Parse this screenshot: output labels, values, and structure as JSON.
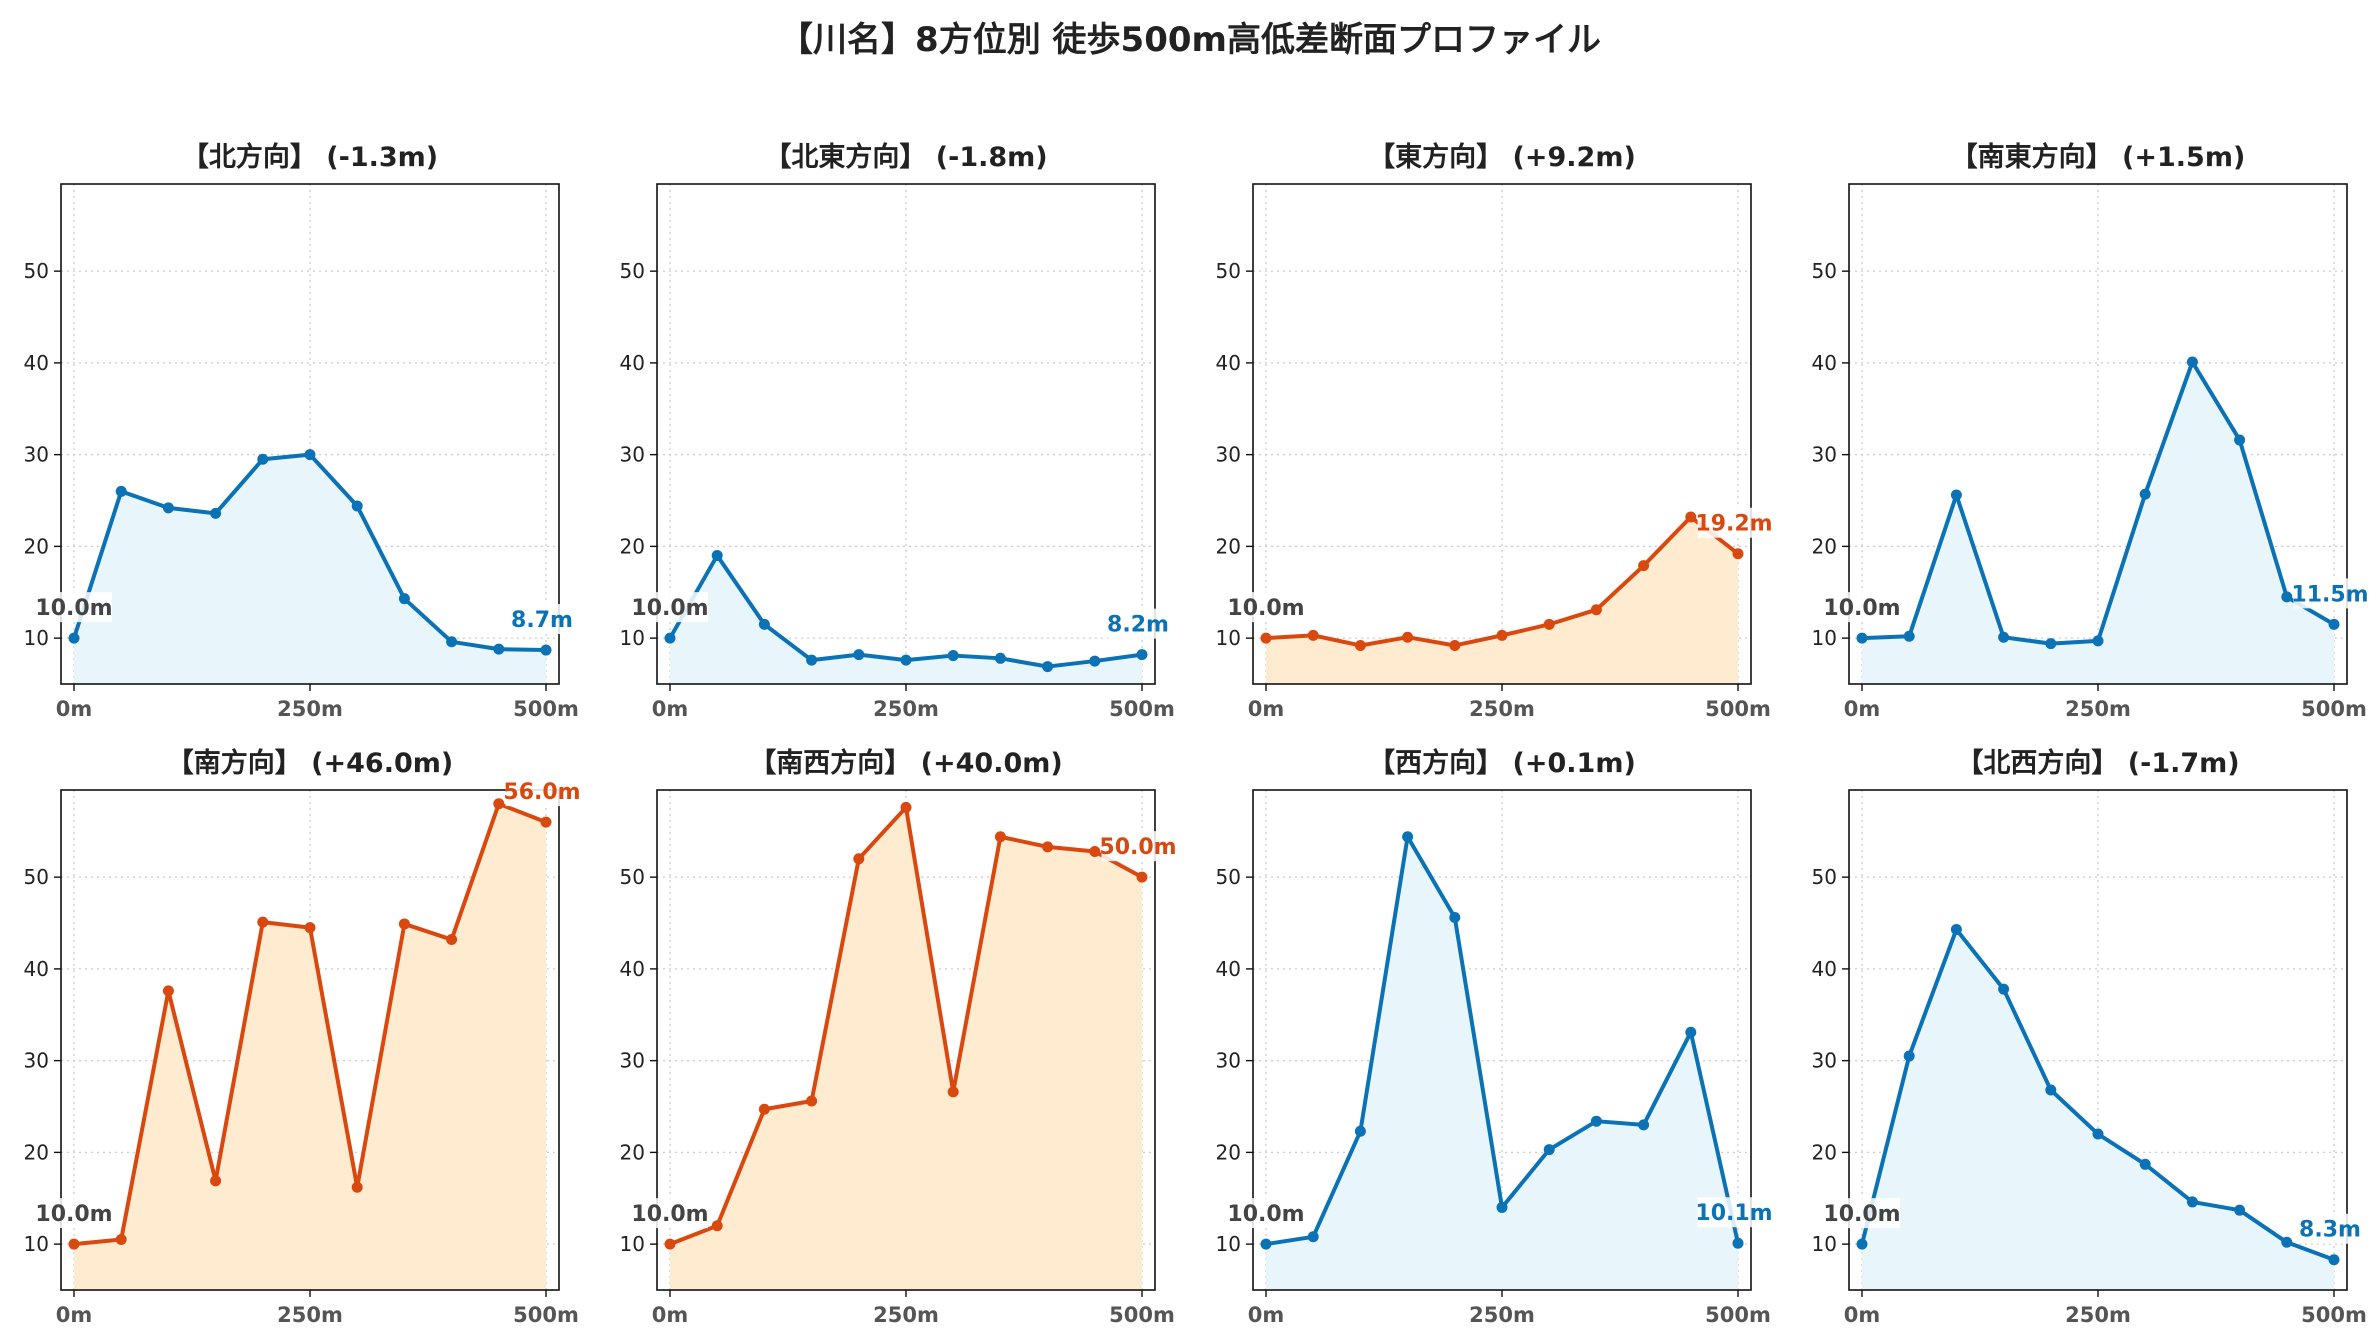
{
  "title": "【川名】8方位別 徒歩500m高低差断面プロファイル",
  "colors": {
    "down_line": "#1f77b4",
    "down_line_dark": "#0b72b5",
    "down_fill": "#e8f6fc",
    "up_line": "#d9480f",
    "up_fill": "#ffebd0",
    "grid": "#cccccc",
    "start_label": "#444444"
  },
  "chart_data": [
    {
      "type": "area",
      "title": "【北方向】 (-1.3m)",
      "trend": "down",
      "x": [
        0,
        50,
        100,
        150,
        200,
        250,
        300,
        350,
        400,
        450,
        500
      ],
      "y": [
        10.0,
        26.0,
        24.2,
        23.6,
        29.5,
        30.0,
        24.4,
        14.3,
        9.6,
        8.8,
        8.7
      ],
      "start_label": "10.0m",
      "end_label": "8.7m",
      "xticks": [
        "0m",
        "250m",
        "500m"
      ],
      "yticks": [
        10,
        20,
        30,
        40,
        50
      ],
      "ylim": [
        5,
        59.5
      ],
      "grid": true
    },
    {
      "type": "area",
      "title": "【北東方向】 (-1.8m)",
      "trend": "down",
      "x": [
        0,
        50,
        100,
        150,
        200,
        250,
        300,
        350,
        400,
        450,
        500
      ],
      "y": [
        10.0,
        19.0,
        11.5,
        7.6,
        8.2,
        7.6,
        8.1,
        7.8,
        6.9,
        7.5,
        8.2
      ],
      "start_label": "10.0m",
      "end_label": "8.2m",
      "xticks": [
        "0m",
        "250m",
        "500m"
      ],
      "yticks": [
        10,
        20,
        30,
        40,
        50
      ],
      "ylim": [
        5,
        59.5
      ],
      "grid": true
    },
    {
      "type": "area",
      "title": "【東方向】 (+9.2m)",
      "trend": "up",
      "x": [
        0,
        50,
        100,
        150,
        200,
        250,
        300,
        350,
        400,
        450,
        500
      ],
      "y": [
        10.0,
        10.3,
        9.2,
        10.1,
        9.2,
        10.3,
        11.5,
        13.1,
        17.9,
        23.2,
        19.2
      ],
      "start_label": "10.0m",
      "end_label": "19.2m",
      "xticks": [
        "0m",
        "250m",
        "500m"
      ],
      "yticks": [
        10,
        20,
        30,
        40,
        50
      ],
      "ylim": [
        5,
        59.5
      ],
      "grid": true
    },
    {
      "type": "area",
      "title": "【南東方向】 (+1.5m)",
      "trend": "down",
      "x": [
        0,
        50,
        100,
        150,
        200,
        250,
        300,
        350,
        400,
        450,
        500
      ],
      "y": [
        10.0,
        10.2,
        25.6,
        10.1,
        9.4,
        9.7,
        25.7,
        40.1,
        31.6,
        14.5,
        11.5
      ],
      "start_label": "10.0m",
      "end_label": "11.5m",
      "xticks": [
        "0m",
        "250m",
        "500m"
      ],
      "yticks": [
        10,
        20,
        30,
        40,
        50
      ],
      "ylim": [
        5,
        59.5
      ],
      "grid": true
    },
    {
      "type": "area",
      "title": "【南方向】 (+46.0m)",
      "trend": "up",
      "x": [
        0,
        50,
        100,
        150,
        200,
        250,
        300,
        350,
        400,
        450,
        500
      ],
      "y": [
        10.0,
        10.5,
        37.6,
        16.9,
        45.1,
        44.5,
        16.2,
        44.9,
        43.2,
        58.0,
        56.0
      ],
      "start_label": "10.0m",
      "end_label": "56.0m",
      "xticks": [
        "0m",
        "250m",
        "500m"
      ],
      "yticks": [
        10,
        20,
        30,
        40,
        50
      ],
      "ylim": [
        5,
        59.5
      ],
      "grid": true
    },
    {
      "type": "area",
      "title": "【南西方向】 (+40.0m)",
      "trend": "up",
      "x": [
        0,
        50,
        100,
        150,
        200,
        250,
        300,
        350,
        400,
        450,
        500
      ],
      "y": [
        10.0,
        12.0,
        24.7,
        25.6,
        52.0,
        57.6,
        26.6,
        54.4,
        53.3,
        52.8,
        50.0
      ],
      "start_label": "10.0m",
      "end_label": "50.0m",
      "xticks": [
        "0m",
        "250m",
        "500m"
      ],
      "yticks": [
        10,
        20,
        30,
        40,
        50
      ],
      "ylim": [
        5,
        59.5
      ],
      "grid": true
    },
    {
      "type": "area",
      "title": "【西方向】 (+0.1m)",
      "trend": "down",
      "x": [
        0,
        50,
        100,
        150,
        200,
        250,
        300,
        350,
        400,
        450,
        500
      ],
      "y": [
        10.0,
        10.8,
        22.3,
        54.4,
        45.6,
        14.0,
        20.3,
        23.4,
        23.0,
        33.1,
        10.1
      ],
      "start_label": "10.0m",
      "end_label": "10.1m",
      "xticks": [
        "0m",
        "250m",
        "500m"
      ],
      "yticks": [
        10,
        20,
        30,
        40,
        50
      ],
      "ylim": [
        5,
        59.5
      ],
      "grid": true
    },
    {
      "type": "area",
      "title": "【北西方向】 (-1.7m)",
      "trend": "down",
      "x": [
        0,
        50,
        100,
        150,
        200,
        250,
        300,
        350,
        400,
        450,
        500
      ],
      "y": [
        10.0,
        30.5,
        44.3,
        37.8,
        26.8,
        22.0,
        18.7,
        14.6,
        13.7,
        10.2,
        8.3
      ],
      "start_label": "10.0m",
      "end_label": "8.3m",
      "xticks": [
        "0m",
        "250m",
        "500m"
      ],
      "yticks": [
        10,
        20,
        30,
        40,
        50
      ],
      "ylim": [
        5,
        59.5
      ],
      "grid": true
    }
  ]
}
